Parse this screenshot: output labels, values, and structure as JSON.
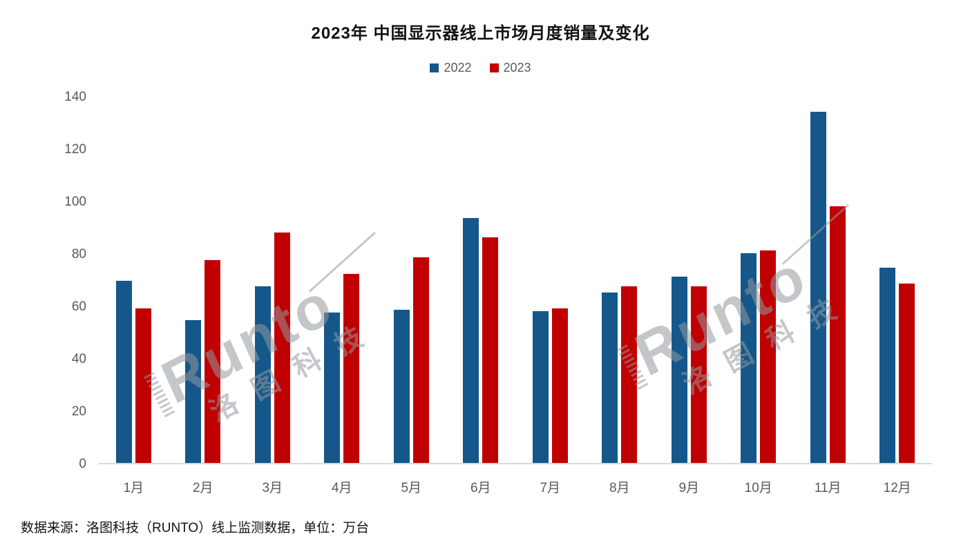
{
  "title": "2023年 中国显示器线上市场月度销量及变化",
  "legend": [
    {
      "label": "2022",
      "color": "#15578A"
    },
    {
      "label": "2023",
      "color": "#C00000"
    }
  ],
  "source_note": "数据来源：洛图科技（RUNTO）线上监测数据，单位：万台",
  "watermark": {
    "brand": "Runto",
    "brand_cn": "洛图科技"
  },
  "colors": {
    "axis_line": "#d8d8d8",
    "tick_text": "#595959",
    "title_text": "#111111"
  },
  "chart_data": {
    "type": "bar",
    "title": "2023年 中国显示器线上市场月度销量及变化",
    "categories": [
      "1月",
      "2月",
      "3月",
      "4月",
      "5月",
      "6月",
      "7月",
      "8月",
      "9月",
      "10月",
      "11月",
      "12月"
    ],
    "series": [
      {
        "name": "2022",
        "color": "#15578A",
        "values": [
          69.5,
          54.5,
          67.5,
          57.5,
          58.5,
          93.5,
          58,
          65,
          71,
          80,
          134,
          74.5
        ]
      },
      {
        "name": "2023",
        "color": "#C00000",
        "values": [
          59,
          77.5,
          88,
          72,
          78.5,
          86,
          59,
          67.5,
          67.5,
          81,
          98,
          68.5
        ]
      }
    ],
    "xlabel": "",
    "ylabel": "",
    "unit": "万台",
    "ylim": [
      0,
      140
    ],
    "yticks": [
      0,
      20,
      40,
      60,
      80,
      100,
      120,
      140
    ],
    "grid": false,
    "legend_position": "top"
  }
}
